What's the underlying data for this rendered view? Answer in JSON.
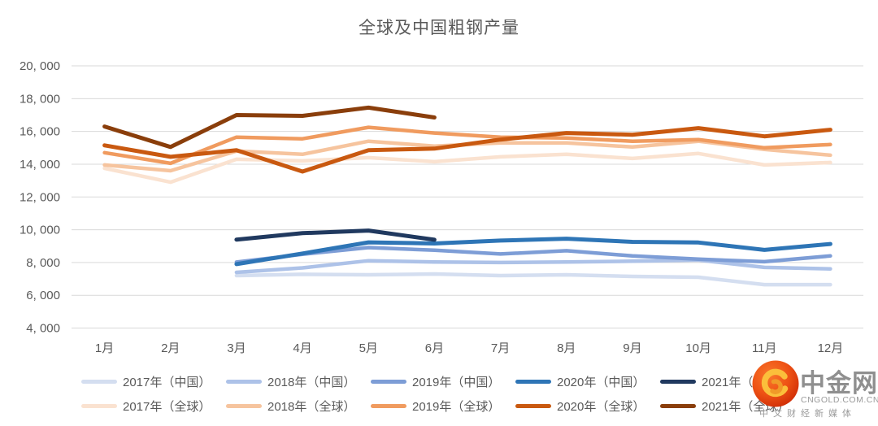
{
  "title": "全球及中国粗钢产量",
  "y_axis": {
    "tick_labels_bottom_to_top": [
      "4, 000",
      "6, 000",
      "8, 000",
      "10, 000",
      "12, 000",
      "14, 000",
      "16, 000",
      "18, 000",
      "20, 000"
    ]
  },
  "chart_data": {
    "type": "line",
    "title": "全球及中国粗钢产量",
    "categories": [
      "1月",
      "2月",
      "3月",
      "4月",
      "5月",
      "6月",
      "7月",
      "8月",
      "9月",
      "10月",
      "11月",
      "12月"
    ],
    "ylim": [
      4000,
      20000
    ],
    "y_tick_step": 2000,
    "grid": "horizontal-only",
    "legend_position": "bottom-two-rows",
    "series": [
      {
        "name": "2017年（中国）",
        "group": "中国",
        "color": "#D4DEF0",
        "width": 4.5,
        "values": [
          null,
          null,
          7200,
          7280,
          7250,
          7300,
          7200,
          7250,
          7150,
          7100,
          6650,
          6650
        ]
      },
      {
        "name": "2018年（中国）",
        "group": "中国",
        "color": "#ADC2E8",
        "width": 4.5,
        "values": [
          null,
          null,
          7400,
          7670,
          8110,
          8030,
          8000,
          8030,
          8080,
          8150,
          7700,
          7610
        ]
      },
      {
        "name": "2019年（中国）",
        "group": "中国",
        "color": "#7D9DD6",
        "width": 4.5,
        "values": [
          null,
          null,
          8030,
          8500,
          8910,
          8750,
          8520,
          8720,
          8400,
          8200,
          8050,
          8400
        ]
      },
      {
        "name": "2020年（中国）",
        "group": "中国",
        "color": "#2E75B6",
        "width": 5,
        "values": [
          null,
          null,
          7900,
          8550,
          9230,
          9160,
          9340,
          9450,
          9260,
          9220,
          8770,
          9130
        ]
      },
      {
        "name": "2021年（中国）",
        "group": "中国",
        "color": "#20395F",
        "width": 5,
        "values": [
          null,
          null,
          9400,
          9790,
          9950,
          9390,
          null,
          null,
          null,
          null,
          null,
          null
        ]
      },
      {
        "name": "2017年（全球）",
        "group": "全球",
        "color": "#FAE2D0",
        "width": 4.5,
        "values": [
          13750,
          12900,
          14300,
          14200,
          14400,
          14150,
          14450,
          14600,
          14350,
          14650,
          13950,
          14100
        ]
      },
      {
        "name": "2018年（全球）",
        "group": "全球",
        "color": "#F6C49E",
        "width": 4.5,
        "values": [
          13950,
          13600,
          14800,
          14600,
          15400,
          15100,
          15300,
          15300,
          15050,
          15400,
          14900,
          14550
        ]
      },
      {
        "name": "2019年（全球）",
        "group": "全球",
        "color": "#F09B5F",
        "width": 4.5,
        "values": [
          14700,
          14050,
          15650,
          15550,
          16250,
          15900,
          15650,
          15600,
          15400,
          15500,
          15000,
          15200
        ]
      },
      {
        "name": "2020年（全球）",
        "group": "全球",
        "color": "#C95910",
        "width": 5,
        "values": [
          15150,
          14450,
          14850,
          13550,
          14850,
          14950,
          15500,
          15900,
          15800,
          16200,
          15700,
          16100
        ]
      },
      {
        "name": "2021年（全球）",
        "group": "全球",
        "color": "#8A3E0B",
        "width": 5,
        "values": [
          16300,
          15050,
          17000,
          16950,
          17450,
          16850,
          null,
          null,
          null,
          null,
          null,
          null
        ]
      }
    ]
  },
  "watermark": {
    "brand": "中金网",
    "domain": "CNGOLD.COM.CN",
    "tagline": "中文财经新媒体"
  }
}
